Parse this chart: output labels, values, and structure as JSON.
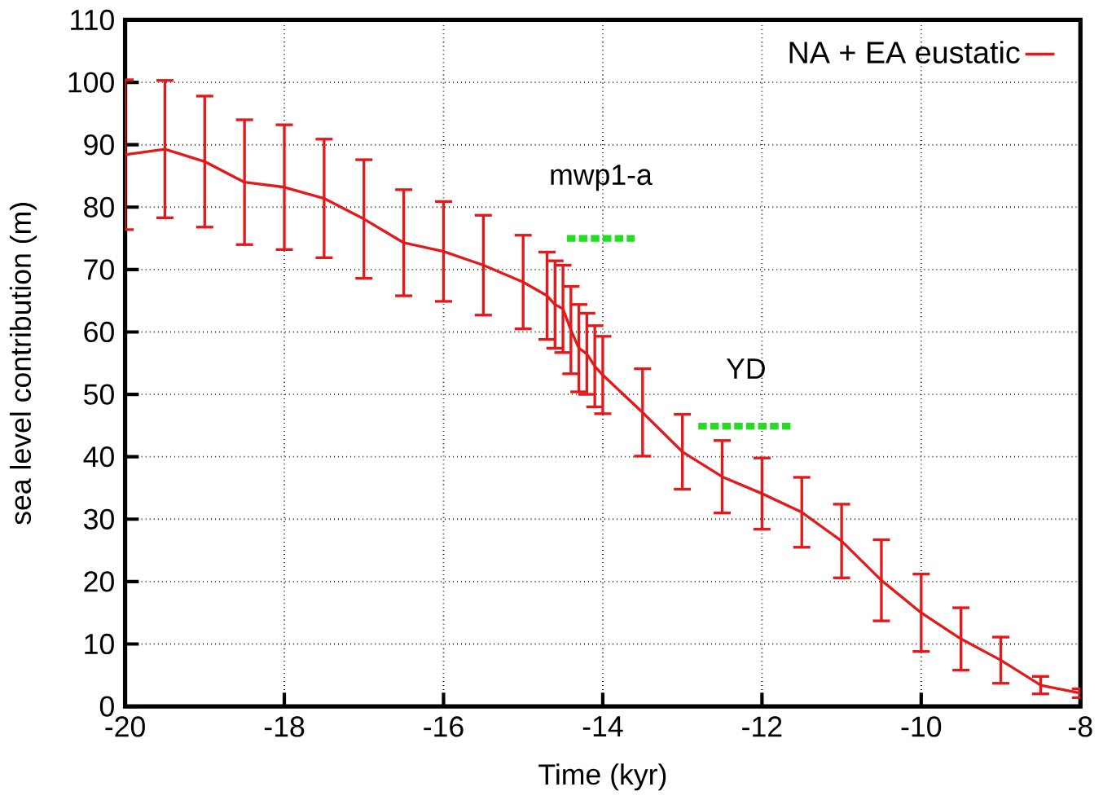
{
  "chart_data": {
    "type": "line",
    "xlabel": "Time (kyr)",
    "ylabel": "sea level contribution (m)",
    "xlim": [
      -20,
      -8
    ],
    "xticks": [
      -20,
      -18,
      -16,
      -14,
      -12,
      -10,
      -8
    ],
    "ylim": [
      0,
      110
    ],
    "yticks": [
      0,
      10,
      20,
      30,
      40,
      50,
      60,
      70,
      80,
      90,
      100,
      110
    ],
    "grid": true,
    "legend": "top right",
    "marker": "none",
    "series": [
      {
        "name": "NA + EA eustatic",
        "color": "#e31a1c",
        "line_style": "solid",
        "x": [
          -20,
          -19.5,
          -19,
          -18.5,
          -18,
          -17.5,
          -17,
          -16.5,
          -16,
          -15.5,
          -15,
          -14.7,
          -14.6,
          -14.5,
          -14.4,
          -14.3,
          -14.2,
          -14.1,
          -14,
          -13.5,
          -13,
          -12.5,
          -12,
          -11.5,
          -11,
          -10.5,
          -10,
          -9.5,
          -9,
          -8.5,
          -8
        ],
        "values": [
          88.4,
          89.3,
          87.3,
          84,
          83.2,
          81.4,
          78.1,
          74.3,
          72.9,
          70.7,
          68,
          65.8,
          64.4,
          63.7,
          60.3,
          57.4,
          56.5,
          54.5,
          53.1,
          47.1,
          40.8,
          36.8,
          34.1,
          31.1,
          26.5,
          20.2,
          15,
          10.8,
          7.4,
          3.4,
          2.1
        ],
        "errors": [
          12,
          11,
          10.5,
          10,
          10,
          9.5,
          9.5,
          8.5,
          8,
          8,
          7.5,
          7,
          7,
          7,
          7,
          7,
          6.5,
          6.5,
          6.2,
          7,
          6,
          5.8,
          5.7,
          5.6,
          5.9,
          6.5,
          6.2,
          5,
          3.7,
          1.4,
          0.7
        ]
      },
      {
        "name": "mwp1-a",
        "color": "#22dd22",
        "line_style": "dashed",
        "x": [
          -14.45,
          -13.6
        ],
        "values": [
          75,
          75
        ]
      },
      {
        "name": "YD",
        "color": "#22dd22",
        "line_style": "dashed",
        "x": [
          -12.8,
          -11.6
        ],
        "values": [
          44.9,
          44.9
        ]
      }
    ]
  }
}
